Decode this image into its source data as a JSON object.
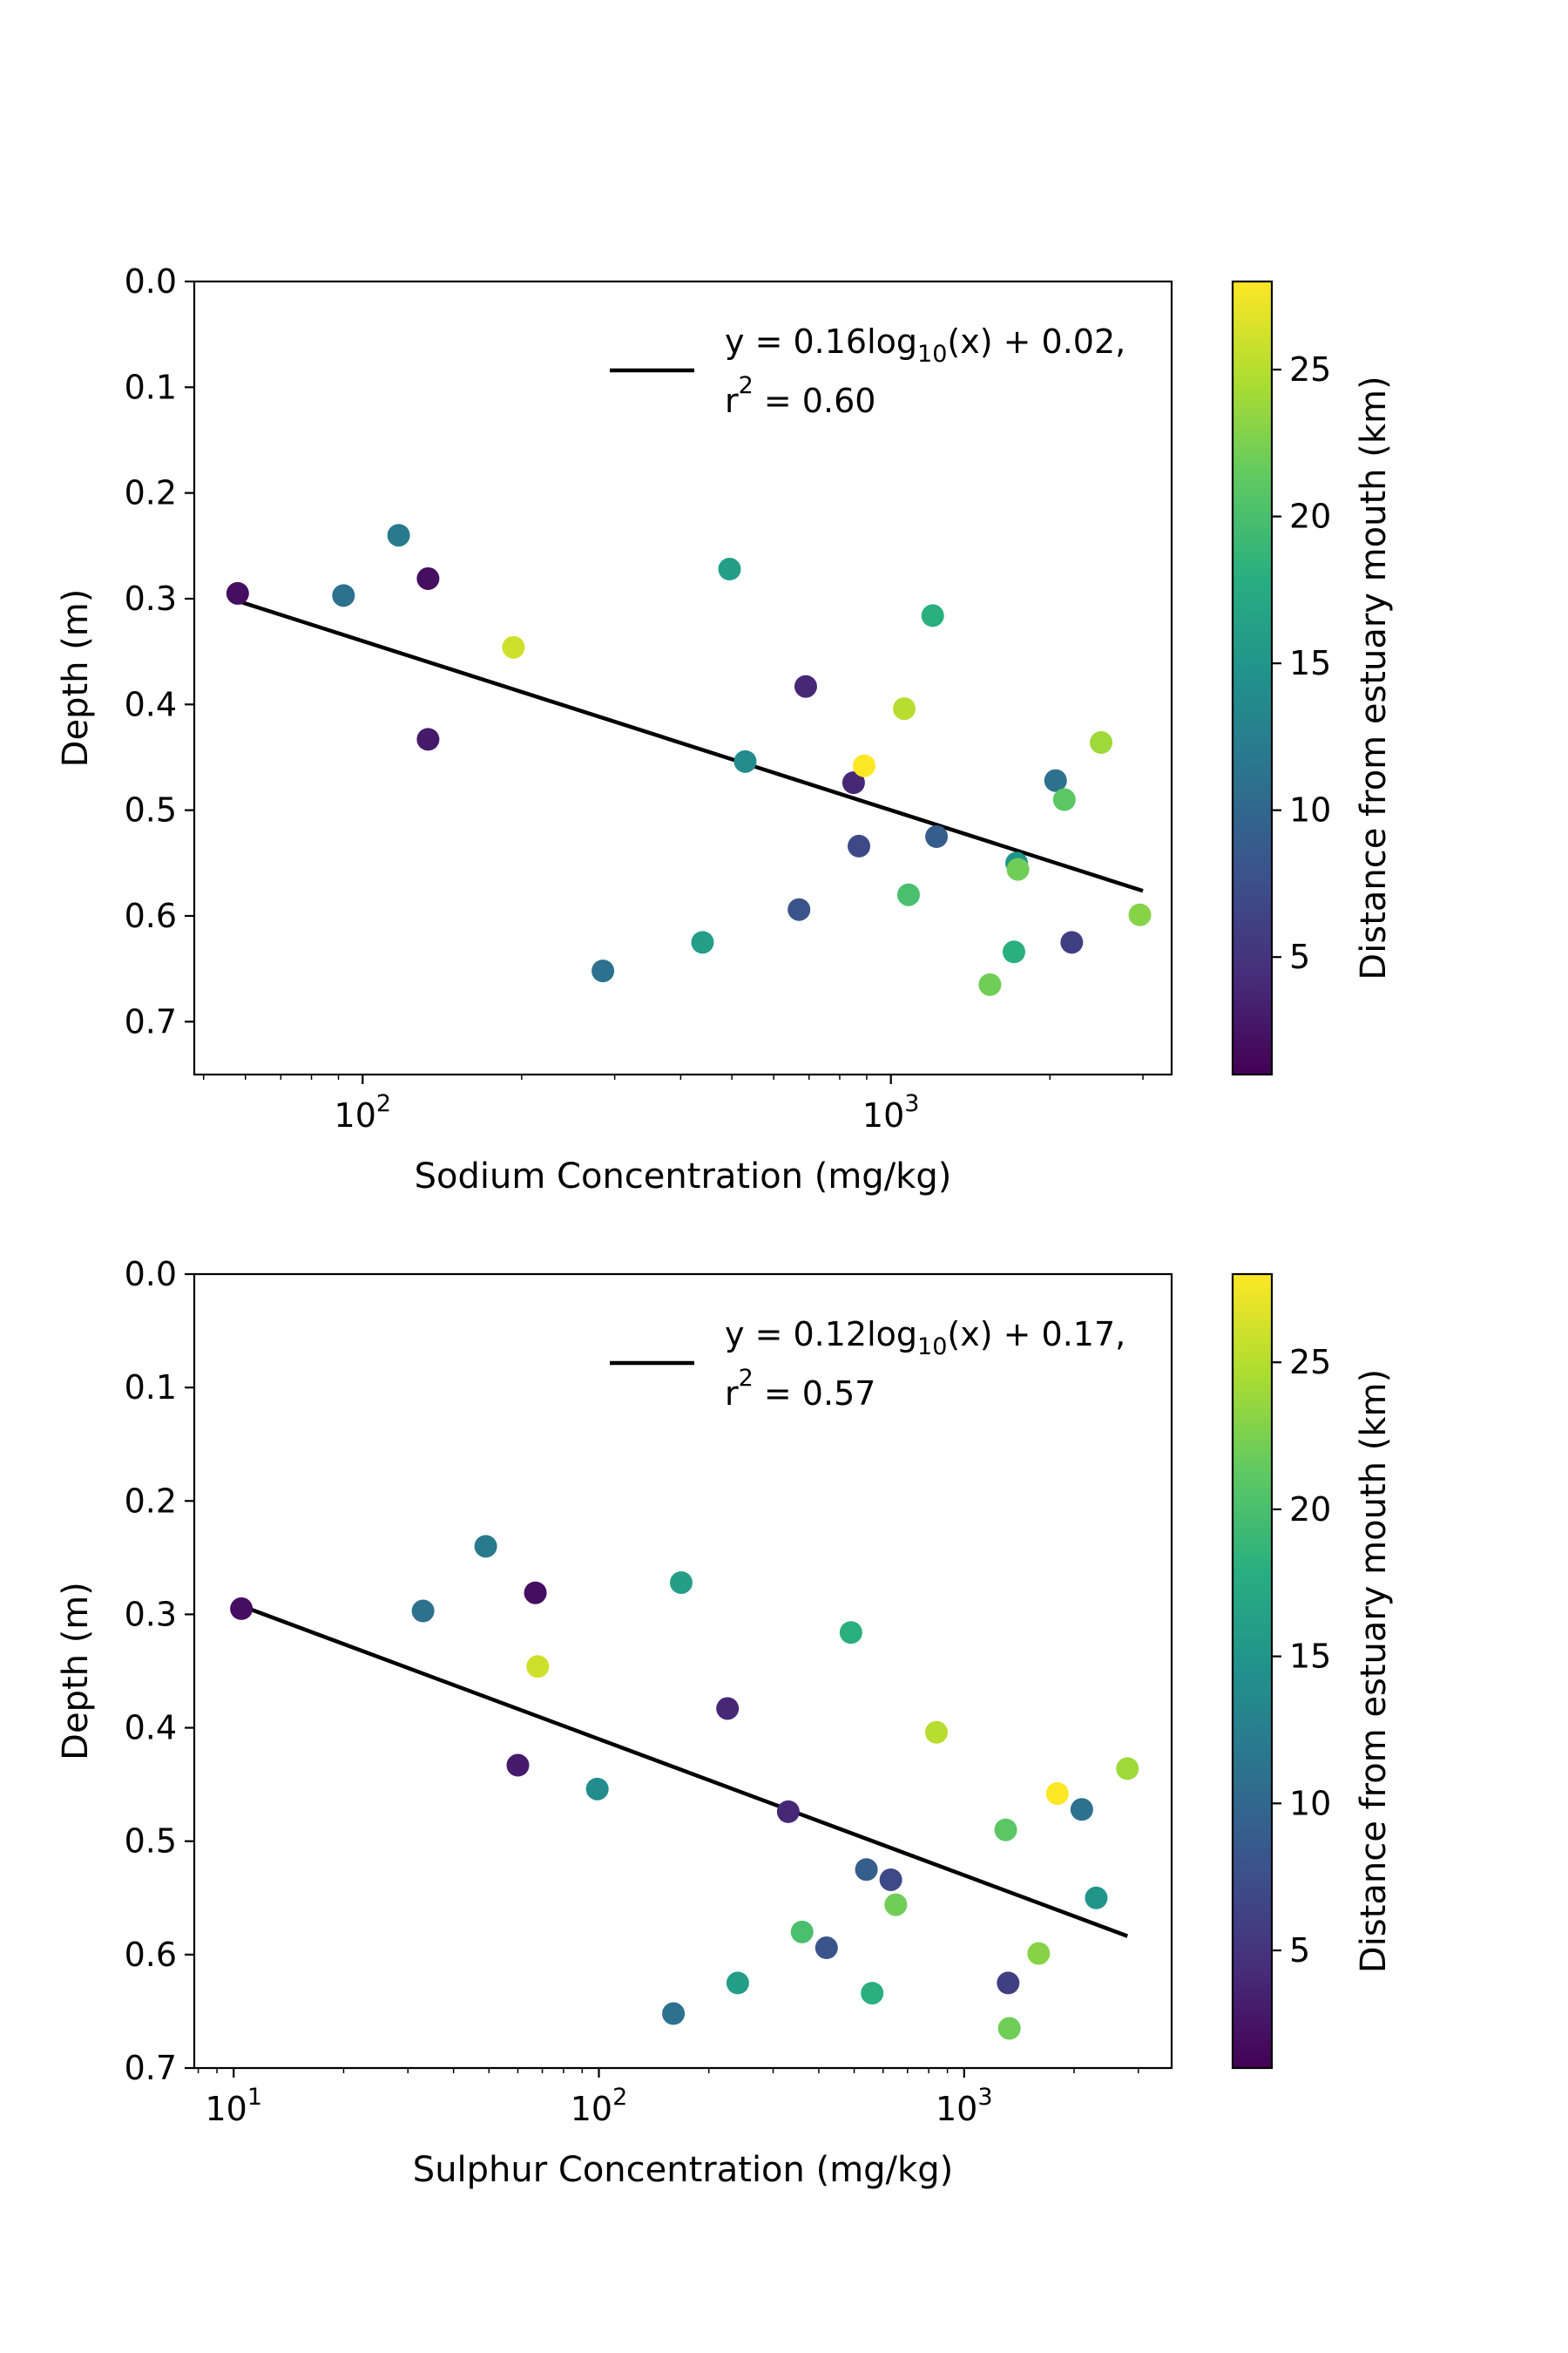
{
  "chart_data": [
    {
      "type": "scatter",
      "xlabel": "Sodium Concentration (mg/kg)",
      "ylabel": "Depth (m)",
      "xscale": "log",
      "xlim": [
        48,
        3400
      ],
      "ylim": [
        0.75,
        0.0
      ],
      "yticks": [
        "0.0",
        "0.1",
        "0.2",
        "0.3",
        "0.4",
        "0.5",
        "0.6",
        "0.7"
      ],
      "xticks": [
        {
          "base": "10",
          "exp": "2"
        },
        {
          "base": "10",
          "exp": "3"
        }
      ],
      "grid": false,
      "legend_position": "top-right",
      "legend": {
        "line1_pre": "y = 0.16log",
        "line1_sub": "10",
        "line1_post": "(x) + 0.02,",
        "line2_pre": "r",
        "line2_sup": "2",
        "line2_post": " = 0.60"
      },
      "fit": {
        "slope": 0.16,
        "intercept": 0.02,
        "x_range": [
          58,
          3000
        ]
      },
      "colorbar": {
        "label": "Distance from estuary mouth (km)",
        "range": [
          1,
          28
        ],
        "ticks": [
          "5",
          "10",
          "15",
          "20",
          "25"
        ],
        "colormap": "viridis"
      },
      "points": [
        {
          "x": 58,
          "y": 0.295,
          "dist": 2
        },
        {
          "x": 92,
          "y": 0.297,
          "dist": 11
        },
        {
          "x": 117,
          "y": 0.24,
          "dist": 12
        },
        {
          "x": 133,
          "y": 0.281,
          "dist": 2
        },
        {
          "x": 133,
          "y": 0.433,
          "dist": 3
        },
        {
          "x": 193,
          "y": 0.346,
          "dist": 26
        },
        {
          "x": 285,
          "y": 0.652,
          "dist": 11
        },
        {
          "x": 440,
          "y": 0.625,
          "dist": 16
        },
        {
          "x": 495,
          "y": 0.272,
          "dist": 16
        },
        {
          "x": 530,
          "y": 0.454,
          "dist": 14
        },
        {
          "x": 670,
          "y": 0.594,
          "dist": 8
        },
        {
          "x": 690,
          "y": 0.383,
          "dist": 4
        },
        {
          "x": 850,
          "y": 0.474,
          "dist": 4
        },
        {
          "x": 870,
          "y": 0.534,
          "dist": 7
        },
        {
          "x": 890,
          "y": 0.458,
          "dist": 28
        },
        {
          "x": 1060,
          "y": 0.404,
          "dist": 25
        },
        {
          "x": 1080,
          "y": 0.58,
          "dist": 20
        },
        {
          "x": 1200,
          "y": 0.316,
          "dist": 18
        },
        {
          "x": 1220,
          "y": 0.525,
          "dist": 9
        },
        {
          "x": 1540,
          "y": 0.665,
          "dist": 22
        },
        {
          "x": 1710,
          "y": 0.634,
          "dist": 18
        },
        {
          "x": 1730,
          "y": 0.55,
          "dist": 15
        },
        {
          "x": 1740,
          "y": 0.556,
          "dist": 22
        },
        {
          "x": 2050,
          "y": 0.472,
          "dist": 11
        },
        {
          "x": 2130,
          "y": 0.49,
          "dist": 21
        },
        {
          "x": 2200,
          "y": 0.625,
          "dist": 6
        },
        {
          "x": 2500,
          "y": 0.436,
          "dist": 24
        },
        {
          "x": 2960,
          "y": 0.599,
          "dist": 23
        }
      ]
    },
    {
      "type": "scatter",
      "xlabel": "Sulphur Concentration (mg/kg)",
      "ylabel": "Depth (m)",
      "xscale": "log",
      "xlim": [
        7.8,
        3700
      ],
      "ylim": [
        0.7,
        0.0
      ],
      "yticks": [
        "0.0",
        "0.1",
        "0.2",
        "0.3",
        "0.4",
        "0.5",
        "0.6",
        "0.7"
      ],
      "xticks": [
        {
          "base": "10",
          "exp": "1"
        },
        {
          "base": "10",
          "exp": "2"
        },
        {
          "base": "10",
          "exp": "3"
        }
      ],
      "grid": false,
      "legend_position": "top-right",
      "legend": {
        "line1_pre": "y = 0.12log",
        "line1_sub": "10",
        "line1_post": "(x) + 0.17,",
        "line2_pre": "r",
        "line2_sup": "2",
        "line2_post": " = 0.57"
      },
      "fit": {
        "slope": 0.12,
        "intercept": 0.17,
        "x_range": [
          10.5,
          2800
        ]
      },
      "colorbar": {
        "label": "Distance from estuary mouth (km)",
        "range": [
          1,
          28
        ],
        "ticks": [
          "5",
          "10",
          "15",
          "20",
          "25"
        ],
        "colormap": "viridis"
      },
      "points": [
        {
          "x": 10.5,
          "y": 0.295,
          "dist": 2
        },
        {
          "x": 33,
          "y": 0.297,
          "dist": 11
        },
        {
          "x": 49,
          "y": 0.24,
          "dist": 12
        },
        {
          "x": 60,
          "y": 0.433,
          "dist": 3
        },
        {
          "x": 67,
          "y": 0.281,
          "dist": 2
        },
        {
          "x": 68,
          "y": 0.346,
          "dist": 26
        },
        {
          "x": 99,
          "y": 0.454,
          "dist": 14
        },
        {
          "x": 160,
          "y": 0.652,
          "dist": 11
        },
        {
          "x": 168,
          "y": 0.272,
          "dist": 16
        },
        {
          "x": 225,
          "y": 0.383,
          "dist": 4
        },
        {
          "x": 240,
          "y": 0.625,
          "dist": 16
        },
        {
          "x": 330,
          "y": 0.474,
          "dist": 4
        },
        {
          "x": 360,
          "y": 0.58,
          "dist": 20
        },
        {
          "x": 420,
          "y": 0.594,
          "dist": 8
        },
        {
          "x": 490,
          "y": 0.316,
          "dist": 18
        },
        {
          "x": 540,
          "y": 0.525,
          "dist": 9
        },
        {
          "x": 560,
          "y": 0.634,
          "dist": 18
        },
        {
          "x": 630,
          "y": 0.534,
          "dist": 7
        },
        {
          "x": 650,
          "y": 0.556,
          "dist": 22
        },
        {
          "x": 840,
          "y": 0.404,
          "dist": 25
        },
        {
          "x": 1300,
          "y": 0.49,
          "dist": 21
        },
        {
          "x": 1320,
          "y": 0.625,
          "dist": 6
        },
        {
          "x": 1330,
          "y": 0.665,
          "dist": 22
        },
        {
          "x": 1600,
          "y": 0.599,
          "dist": 23
        },
        {
          "x": 1800,
          "y": 0.458,
          "dist": 28
        },
        {
          "x": 2100,
          "y": 0.472,
          "dist": 11
        },
        {
          "x": 2300,
          "y": 0.55,
          "dist": 15
        },
        {
          "x": 2800,
          "y": 0.436,
          "dist": 24
        }
      ]
    }
  ]
}
